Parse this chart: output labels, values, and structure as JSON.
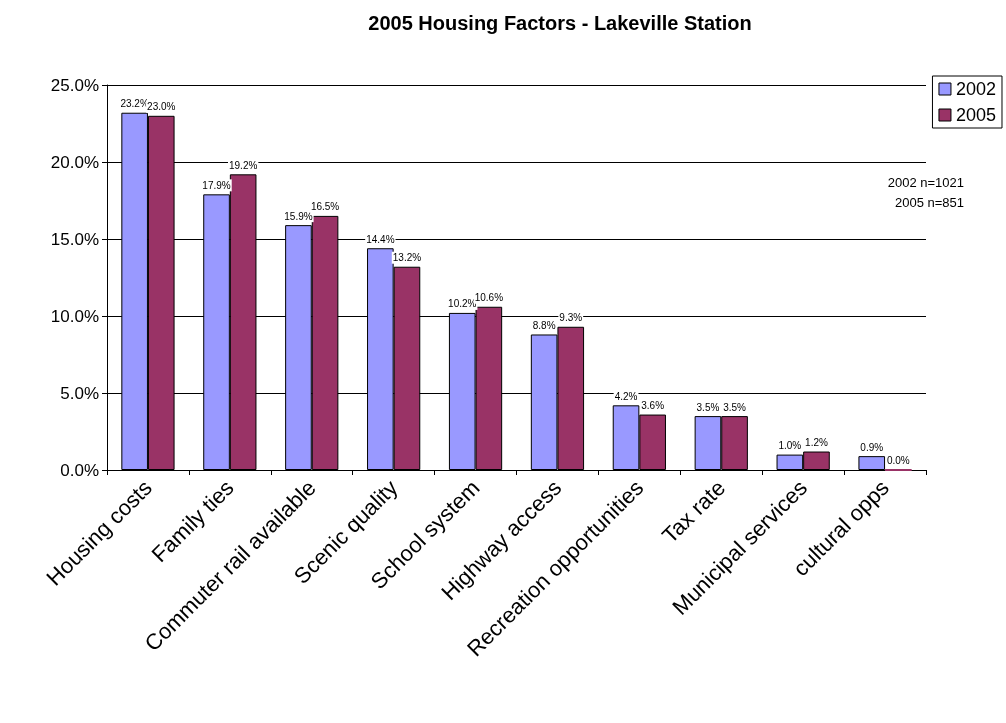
{
  "chart_data": {
    "type": "bar",
    "title": "2005 Housing Factors - Lakeville Station",
    "categories": [
      "Housing costs",
      "Family ties",
      "Commuter rail available",
      "Scenic quality",
      "School system",
      "Highway access",
      "Recreation opportunities",
      "Tax rate",
      "Municipal services",
      "cultural opps"
    ],
    "series": [
      {
        "name": "2002",
        "color": "#9999ff",
        "values": [
          23.2,
          17.9,
          15.9,
          14.4,
          10.2,
          8.8,
          4.2,
          3.5,
          1.0,
          0.9
        ],
        "value_labels": [
          "23.2%",
          "17.9%",
          "15.9%",
          "14.4%",
          "10.2%",
          "8.8%",
          "4.2%",
          "3.5%",
          "1.0%",
          "0.9%"
        ]
      },
      {
        "name": "2005",
        "color": "#993366",
        "values": [
          23.0,
          19.2,
          16.5,
          13.2,
          10.6,
          9.3,
          3.6,
          3.5,
          1.2,
          0.0
        ],
        "value_labels": [
          "23.0%",
          "19.2%",
          "16.5%",
          "13.2%",
          "10.6%",
          "9.3%",
          "3.6%",
          "3.5%",
          "1.2%",
          "0.0%"
        ]
      }
    ],
    "ylim": [
      0,
      25
    ],
    "yticks": [
      {
        "value": 0,
        "label": "0.0%"
      },
      {
        "value": 5,
        "label": "5.0%"
      },
      {
        "value": 10,
        "label": "10.0%"
      },
      {
        "value": 15,
        "label": "15.0%"
      },
      {
        "value": 20,
        "label": "20.0%"
      },
      {
        "value": 25,
        "label": "25.0%"
      }
    ],
    "grid": "y",
    "legend": "top right",
    "annotations": [
      "2002 n=1021",
      "2005 n=851"
    ]
  }
}
